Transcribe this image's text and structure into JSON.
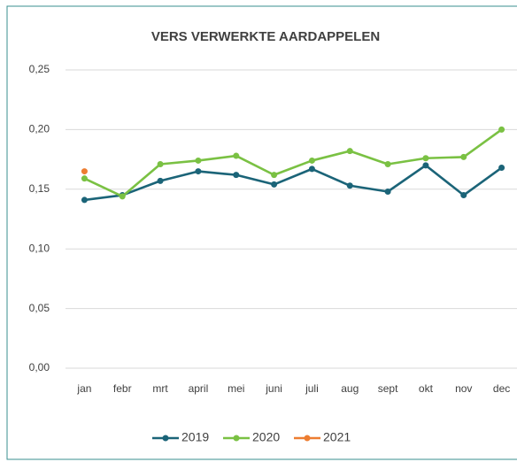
{
  "chart_data": {
    "type": "line",
    "title": "VERS VERWERKTE AARDAPPELEN",
    "categories": [
      "jan",
      "febr",
      "mrt",
      "april",
      "mei",
      "juni",
      "juli",
      "aug",
      "sept",
      "okt",
      "nov",
      "dec"
    ],
    "series": [
      {
        "name": "2019",
        "color": "#1b6478",
        "values": [
          0.141,
          0.145,
          0.157,
          0.165,
          0.162,
          0.154,
          0.167,
          0.153,
          0.148,
          0.17,
          0.145,
          0.168
        ]
      },
      {
        "name": "2020",
        "color": "#7ac143",
        "values": [
          0.159,
          0.144,
          0.171,
          0.174,
          0.178,
          0.162,
          0.174,
          0.182,
          0.171,
          0.176,
          0.177,
          0.2
        ]
      },
      {
        "name": "2021",
        "color": "#ed7d31",
        "values": [
          0.165,
          null,
          null,
          null,
          null,
          null,
          null,
          null,
          null,
          null,
          null,
          null
        ]
      }
    ],
    "ylim": [
      0,
      0.25
    ],
    "yticks": [
      {
        "value": 0,
        "label": "0,00"
      },
      {
        "value": 0.05,
        "label": "0,05"
      },
      {
        "value": 0.1,
        "label": "0,10"
      },
      {
        "value": 0.15,
        "label": "0,15"
      },
      {
        "value": 0.2,
        "label": "0,20"
      },
      {
        "value": 0.25,
        "label": "0,25"
      }
    ],
    "grid": true,
    "legend": "bottom"
  }
}
